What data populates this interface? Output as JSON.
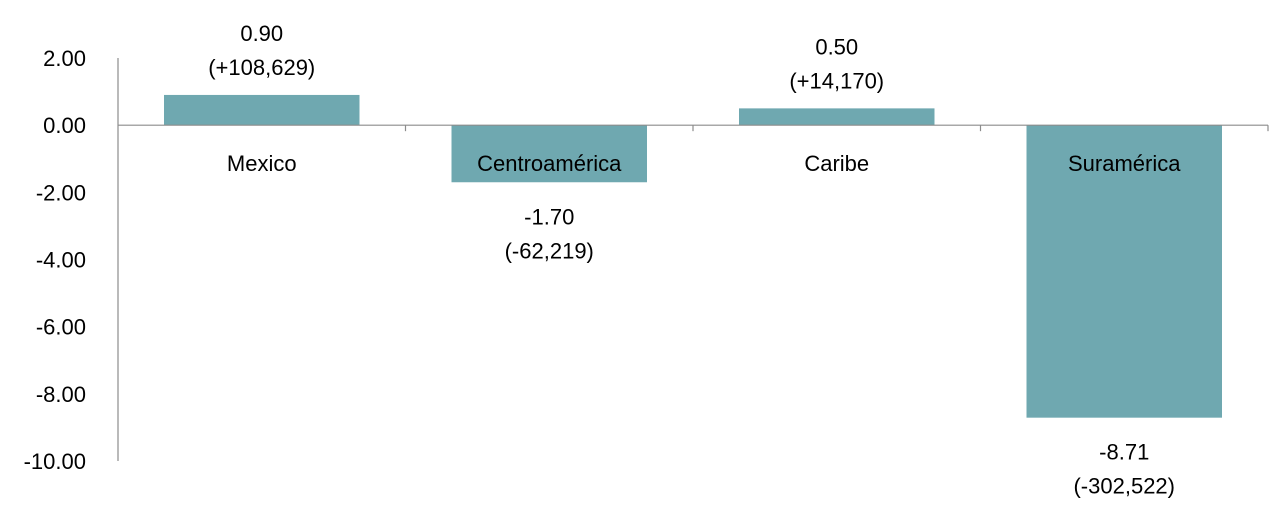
{
  "chart_data": {
    "type": "bar",
    "categories": [
      "Mexico",
      "Centroamérica",
      "Caribe",
      "Suramérica"
    ],
    "values": [
      0.9,
      -1.7,
      0.5,
      -8.71
    ],
    "data_labels": [
      {
        "value": "0.90",
        "detail": "(+108,629)"
      },
      {
        "value": "-1.70",
        "detail": "(-62,219)"
      },
      {
        "value": "0.50",
        "detail": "(+14,170)"
      },
      {
        "value": "-8.71",
        "detail": "(-302,522)"
      }
    ],
    "y_ticks": [
      "2.00",
      "0.00",
      "-2.00",
      "-4.00",
      "-6.00",
      "-8.00",
      "-10.00"
    ],
    "ylim": [
      -10,
      2
    ],
    "title": "",
    "xlabel": "",
    "ylabel": "",
    "grid": false,
    "legend": "none",
    "bar_color": "#6fa8b0"
  }
}
